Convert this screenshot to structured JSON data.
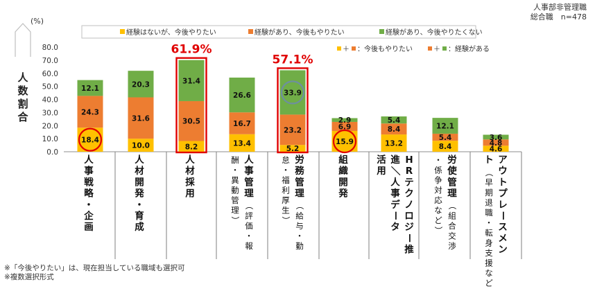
{
  "header": {
    "line1": "人事部非管理職",
    "line2": "総合職　n=478"
  },
  "notes": [
    "※「今後やりたい」は、現在担当している職域も選択可",
    "※複数選択形式"
  ],
  "legend_combined": {
    "item1_plus": "＋",
    "item1_text": "：今後もやりたい",
    "item2_plus": "＋",
    "item2_text": "：経験がある"
  },
  "colors": {
    "yellow": "#FFC000",
    "orange": "#ED7D31",
    "green": "#70AD47",
    "highlight_red": "#E00000",
    "highlight_blue": "#6E8FA0"
  },
  "chart_data": {
    "type": "stacked-bar",
    "unit_label": "(%)",
    "ylabel": "人数割合",
    "ylim": [
      0,
      80
    ],
    "yticks": [
      "0.0",
      "10.0",
      "20.0",
      "30.0",
      "40.0",
      "50.0",
      "60.0",
      "70.0",
      "80.0"
    ],
    "categories": [
      "人事戦略・企画",
      "人材開発・育成",
      "人材採用",
      "人事管理（評価・報酬・異動管理）",
      "労務管理（給与・勤怠・福利厚生）",
      "組織開発",
      "HRテクノロジー推進／人事データ活用",
      "労使管理（組合交渉・係争対応など）",
      "アウトプレースメント（早期退職・転身支援など）"
    ],
    "category_lines": [
      {
        "main": "人事戦略・企画",
        "sub": ""
      },
      {
        "main": "人材開発・育成",
        "sub": ""
      },
      {
        "main": "人材採用",
        "sub": ""
      },
      {
        "main": "人事管理",
        "sub": "（評価・報酬・異動管理）"
      },
      {
        "main": "労務管理",
        "sub": "（給与・勤怠・福利厚生）"
      },
      {
        "main": "組織開発",
        "sub": ""
      },
      {
        "main": "HRテクノロジー推進／人事データ活用",
        "sub": ""
      },
      {
        "main": "労使管理",
        "sub": "（組合交渉・係争対応など）"
      },
      {
        "main": "アウトプレースメント",
        "sub": "（早期退職・転身支援など）"
      }
    ],
    "series": [
      {
        "name": "経験はないが、今後やりたい",
        "color": "#FFC000",
        "values": [
          18.4,
          10.0,
          8.2,
          13.4,
          5.2,
          15.9,
          13.2,
          8.4,
          4.6
        ],
        "labels": [
          "18.4",
          "10.0",
          "8.2",
          "13.4",
          "5.2",
          "15.9",
          "13.2",
          "8.4",
          "4.6"
        ]
      },
      {
        "name": "経験があり、今後もやりたい",
        "color": "#ED7D31",
        "values": [
          24.3,
          31.6,
          30.5,
          16.7,
          23.2,
          6.9,
          8.4,
          5.4,
          4.8
        ],
        "labels": [
          "24.3",
          "31.6",
          "30.5",
          "16.7",
          "23.2",
          "6.9",
          "8.4",
          "5.4",
          "4.8"
        ]
      },
      {
        "name": "経験があり、今後やりたくない",
        "color": "#70AD47",
        "values": [
          12.1,
          20.3,
          31.4,
          26.6,
          33.9,
          2.9,
          5.4,
          12.1,
          3.6
        ],
        "labels": [
          "12.1",
          "20.3",
          "31.4",
          "26.6",
          "33.9",
          "2.9",
          "5.4",
          "12.1",
          "3.6"
        ]
      }
    ],
    "annotations": [
      {
        "category_index": 2,
        "text": "61.9%",
        "boxed": true
      },
      {
        "category_index": 4,
        "text": "57.1%",
        "boxed": true
      }
    ],
    "circled_values": [
      {
        "category_index": 0,
        "series_index": 0,
        "color": "red"
      },
      {
        "category_index": 4,
        "series_index": 2,
        "color": "blue"
      },
      {
        "category_index": 5,
        "series_index": 0,
        "color": "red"
      }
    ]
  }
}
